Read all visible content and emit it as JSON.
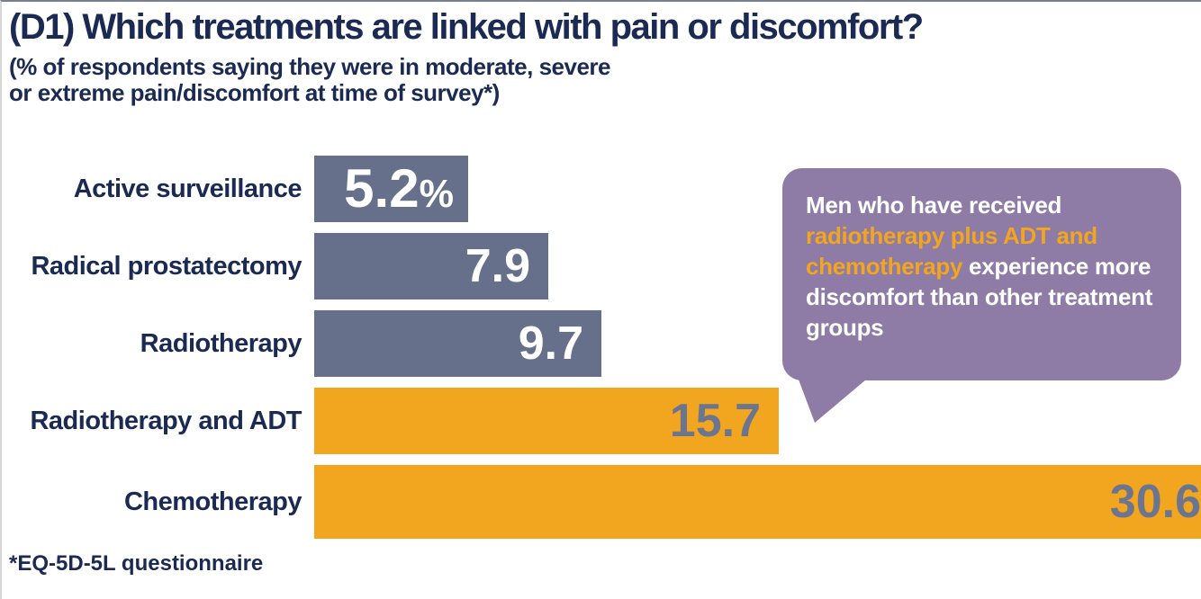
{
  "header": {
    "title": "(D1) Which treatments are linked with pain or discomfort?",
    "subtitle_line1": "(% of respondents saying they were in moderate, severe",
    "subtitle_line2": "or extreme pain/discomfort at time of survey*)"
  },
  "chart_data": {
    "type": "bar",
    "orientation": "horizontal",
    "title": "(D1) Which treatments are linked with pain or discomfort?",
    "subtitle": "(% of respondents saying they were in moderate, severe or extreme pain/discomfort at time of survey*)",
    "categories": [
      "Active surveillance",
      "Radical prostatectomy",
      "Radiotherapy",
      "Radiotherapy and ADT",
      "Chemotherapy"
    ],
    "values": [
      5.2,
      7.9,
      9.7,
      15.7,
      30.6
    ],
    "value_labels": [
      "5.2",
      "7.9",
      "9.7",
      "15.7",
      "30.6"
    ],
    "value_suffixes": [
      "%",
      "",
      "",
      "",
      ""
    ],
    "bar_colors": [
      "#66708A",
      "#66708A",
      "#66708A",
      "#F2A51E",
      "#F2A51E"
    ],
    "value_label_colors": [
      "#FFFFFF",
      "#FFFFFF",
      "#FFFFFF",
      "#6B7590",
      "#6B7590"
    ],
    "xlim": [
      0,
      30.6
    ],
    "grid": false,
    "legend": false,
    "axis_ticks": "none",
    "footnote": "*EQ-5D-5L questionnaire",
    "annotation": "Men who have received radiotherapy plus ADT and chemotherapy experience more discomfort than other treatment groups"
  },
  "callout": {
    "bg": "#8E7BA6",
    "highlight_color": "#F2A51E",
    "segments": [
      {
        "text": "Men who have received ",
        "highlight": false
      },
      {
        "text": "radiotherapy plus ADT and chemotherapy",
        "highlight": true
      },
      {
        "text": " experience more discomfort than other treatment groups",
        "highlight": false
      }
    ]
  },
  "footer": {
    "note": "*EQ-5D-5L questionnaire"
  },
  "colors": {
    "navy_text": "#1B2A52",
    "bar_gray_blue": "#66708A",
    "bar_orange": "#F2A51E",
    "callout_purple": "#8E7BA6",
    "value_muted": "#6B7590",
    "background": "#FFFFFF"
  }
}
